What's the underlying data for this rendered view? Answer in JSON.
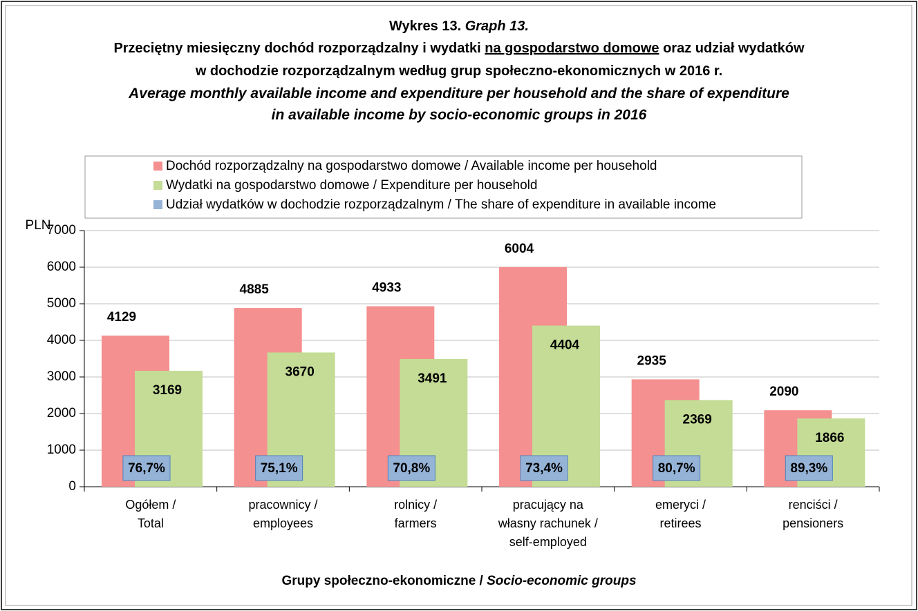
{
  "chart_data": {
    "type": "bar",
    "title": "Wykres 13.",
    "title_en": "Graph 13.",
    "subtitle_pl": {
      "line1": [
        "Przeciętny miesięczny dochód rozporządzalny i wydatki ",
        "na gospodarstwo domowe",
        " oraz udział wydatków"
      ],
      "line2": "w dochodzie rozporządzalnym według grup społeczno-ekonomicznych w 2016 r."
    },
    "subtitle_en": [
      "Average monthly available income and expenditure per household and the share of expenditure",
      "in available income by socio-economic groups in 2016"
    ],
    "y_axis_label": "PLN",
    "x_axis_label": [
      "Grupy społeczno-ekonomiczne / ",
      "Socio-economic groups"
    ],
    "categories": [
      "Ogółem /\nTotal",
      "pracownicy /\nemployees",
      "rolnicy /\nfarmers",
      "pracujący na\nwłasny rachunek /\nself-employed",
      "emeryci /\nretirees",
      "renciści /\npensioners"
    ],
    "series": [
      {
        "name": "Dochód rozporządzalny na gospodarstwo domowe / Available income per household",
        "color": "#f4908f",
        "values": [
          4129,
          4885,
          4933,
          6004,
          2935,
          2090
        ]
      },
      {
        "name": "Wydatki na gospodarstwo domowe / Expenditure per household",
        "color": "#c4dc96",
        "values": [
          3169,
          3670,
          3491,
          4404,
          2369,
          1866
        ]
      },
      {
        "name": "Udział wydatków w dochodzie rozporządzalnym / The share of expenditure in available income",
        "color": "#95b3d7",
        "values": [
          76.7,
          75.1,
          70.8,
          73.4,
          80.7,
          89.3
        ],
        "value_labels": [
          "76,7%",
          "75,1%",
          "70,8%",
          "73,4%",
          "80,7%",
          "89,3%"
        ]
      }
    ],
    "ylim": [
      0,
      7000
    ],
    "yticks": [
      0,
      1000,
      2000,
      3000,
      4000,
      5000,
      6000,
      7000
    ],
    "grid": true
  }
}
